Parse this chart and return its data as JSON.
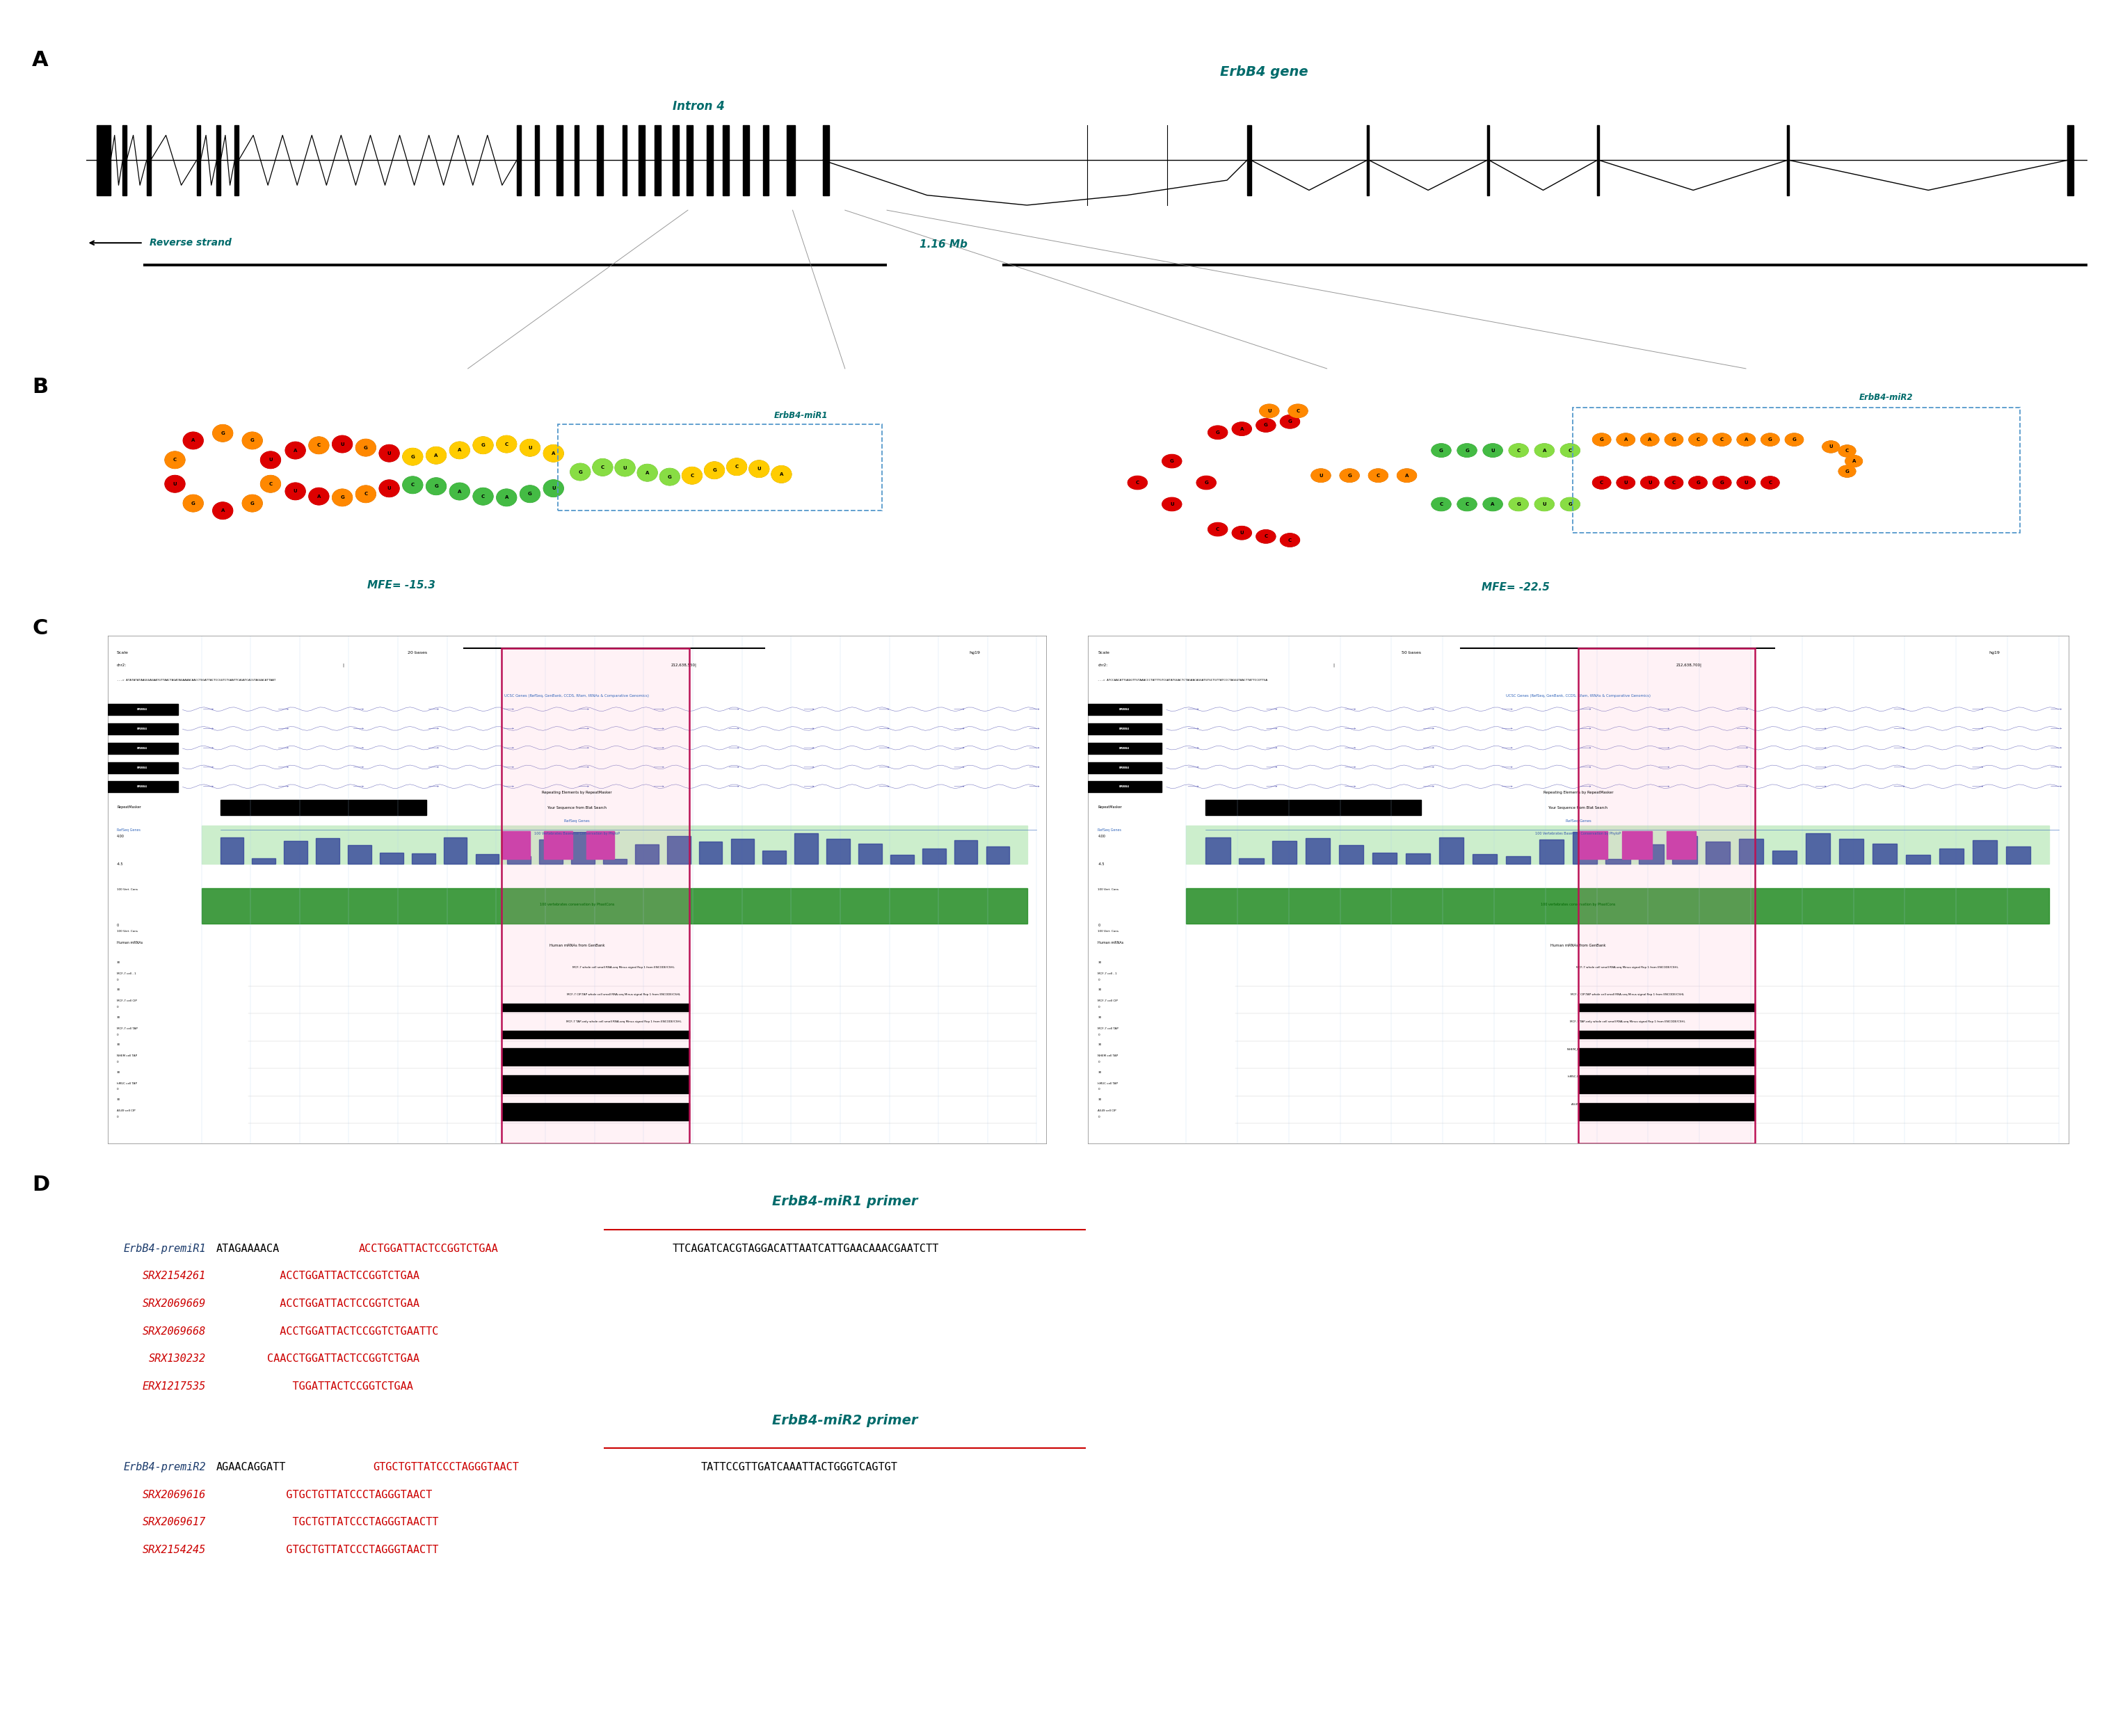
{
  "fig_width": 30.12,
  "fig_height": 24.76,
  "bg_color": "#ffffff",
  "teal_color": "#006B6B",
  "red_color": "#CC0000",
  "panel_D": {
    "mir1_primer_title": "ErbB4-miR1 primer",
    "mir2_primer_title": "ErbB4-miR2 primer",
    "mir1_entries": [
      {
        "label": "ErbB4-premiR1",
        "label_color": "#1a3a6b",
        "prefix_black": "ATAGAAAACA",
        "primer_seq": "ACCTGGATTACTCCGGTCTGAA",
        "primer_color": "#CC0000",
        "suffix_black": "TTCAGATCACGTAGGACATTAATCATTGAACAAACGAATCTT"
      },
      {
        "label": "SRX2154261",
        "label_color": "#CC0000",
        "prefix_black": "",
        "primer_seq": "ACCTGGATTACTCCGGTCTGAA",
        "primer_color": "#CC0000",
        "suffix_black": "",
        "indent_chars": 10
      },
      {
        "label": "SRX2069669",
        "label_color": "#CC0000",
        "prefix_black": "",
        "primer_seq": "ACCTGGATTACTCCGGTCTGAA",
        "primer_color": "#CC0000",
        "suffix_black": "",
        "indent_chars": 10
      },
      {
        "label": "SRX2069668",
        "label_color": "#CC0000",
        "prefix_black": "",
        "primer_seq": "ACCTGGATTACTCCGGTCTGAATTC",
        "primer_color": "#CC0000",
        "suffix_black": "",
        "indent_chars": 10
      },
      {
        "label": "SRX130232",
        "label_color": "#CC0000",
        "prefix_black": "",
        "primer_seq": "CAACCTGGATTACTCCGGTCTGAA",
        "primer_color": "#CC0000",
        "suffix_black": "",
        "indent_chars": 8
      },
      {
        "label": "ERX1217535",
        "label_color": "#CC0000",
        "prefix_black": "",
        "primer_seq": "TGGATTACTCCGGTCTGAA",
        "primer_color": "#CC0000",
        "suffix_black": "",
        "indent_chars": 12
      }
    ],
    "mir2_entries": [
      {
        "label": "ErbB4-premiR2",
        "label_color": "#1a3a6b",
        "prefix_black": "AGAACAGGATT",
        "primer_seq": "GTGCTGTTATCCCTAGGGTAACT",
        "primer_color": "#CC0000",
        "suffix_black": "TATTCCGTTGATCAAATTACTGGGTCAGTGT"
      },
      {
        "label": "SRX2069616",
        "label_color": "#CC0000",
        "prefix_black": "",
        "primer_seq": "GTGCTGTTATCCCTAGGGTAACT",
        "primer_color": "#CC0000",
        "suffix_black": "",
        "indent_chars": 11
      },
      {
        "label": "SRX2069617",
        "label_color": "#CC0000",
        "prefix_black": "",
        "primer_seq": "TGCTGTTATCCCTAGGGTAACTT",
        "primer_color": "#CC0000",
        "suffix_black": "",
        "indent_chars": 12
      },
      {
        "label": "SRX2154245",
        "label_color": "#CC0000",
        "prefix_black": "",
        "primer_seq": "GTGCTGTTATCCCTAGGGTAACTT",
        "primer_color": "#CC0000",
        "suffix_black": "",
        "indent_chars": 11
      }
    ]
  }
}
